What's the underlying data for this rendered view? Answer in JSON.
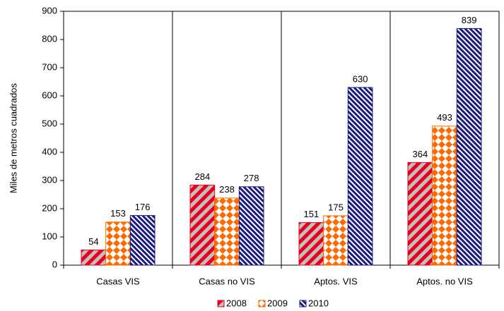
{
  "chart_data": {
    "type": "bar",
    "y_label": "Miles de metros cuadrados",
    "categories": [
      "Casas VIS",
      "Casas no VIS",
      "Aptos. VIS",
      "Aptos. no VIS"
    ],
    "series": [
      {
        "name": "2008",
        "color": "#e8001c",
        "values": [
          54,
          284,
          151,
          364
        ]
      },
      {
        "name": "2009",
        "color": "#ff6a00",
        "values": [
          153,
          238,
          175,
          493
        ]
      },
      {
        "name": "2010",
        "color": "#1a1a80",
        "values": [
          176,
          278,
          630,
          839
        ]
      }
    ],
    "ylim": [
      0,
      900
    ],
    "yticks": [
      0,
      100,
      200,
      300,
      400,
      500,
      600,
      700,
      800,
      900
    ],
    "legend": "bottom"
  }
}
